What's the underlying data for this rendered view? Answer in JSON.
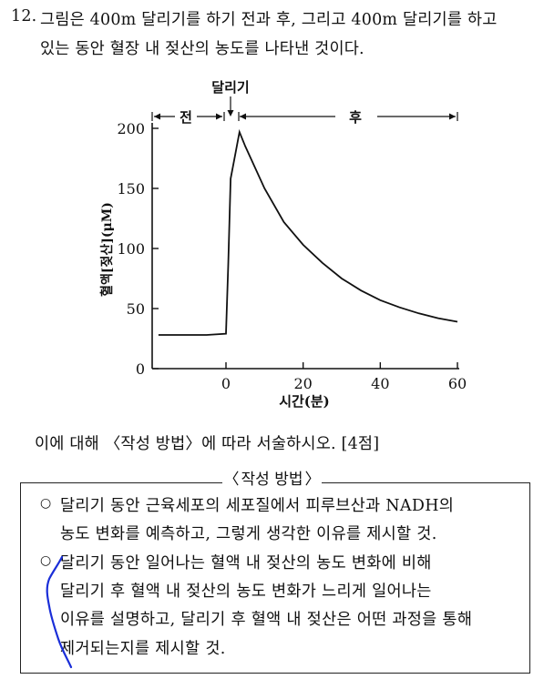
{
  "question": {
    "number": "12.",
    "line1": "그림은 400m 달리기를 하기 전과 후, 그리고 400m 달리기를 하고",
    "line2": "있는 동안 혈장 내 젖산의 농도를 나타낸 것이다."
  },
  "chart_data": {
    "type": "line",
    "title": "",
    "xlabel": "시간(분)",
    "ylabel": "혈액[젖산](μM)",
    "xlim": [
      -18,
      62
    ],
    "ylim": [
      0,
      200
    ],
    "xticks": [
      0,
      20,
      40,
      60
    ],
    "yticks": [
      0,
      50,
      100,
      150,
      200
    ],
    "grid": false,
    "phase_labels": {
      "before": "전",
      "running": "달리기",
      "after": "후"
    },
    "series": [
      {
        "x": [
          -17.5,
          -10,
          -5,
          0,
          0.6,
          1.2,
          2.5,
          3.5,
          5,
          10,
          15,
          20,
          25,
          30,
          35,
          40,
          45,
          50,
          55,
          60
        ],
        "y": [
          28,
          28,
          28,
          29,
          87,
          158,
          180,
          197,
          185,
          150,
          122,
          103,
          88,
          75,
          65,
          57,
          51,
          46,
          42,
          39
        ]
      }
    ]
  },
  "prompt": "이에 대해 〈작성 방법〉에 따라 서술하시오. [4점]",
  "method_box": {
    "title": "작성 방법",
    "bullet_symbol": "○",
    "items": [
      {
        "lines": [
          "달리기 동안 근육세포의 세포질에서 피루브산과 NADH의",
          "농도 변화를 예측하고, 그렇게 생각한 이유를 제시할 것."
        ]
      },
      {
        "lines": [
          "달리기 동안 일어나는 혈액 내 젖산의 농도 변화에 비해",
          "달리기 후 혈액 내 젖산의 농도 변화가 느리게 일어나는",
          "이유를 설명하고, 달리기 후 혈액 내 젖산은 어떤 과정을 통해",
          "제거되는지를 제시할 것."
        ]
      }
    ]
  },
  "annotation": {
    "pen_color": "#1a2ed8"
  }
}
